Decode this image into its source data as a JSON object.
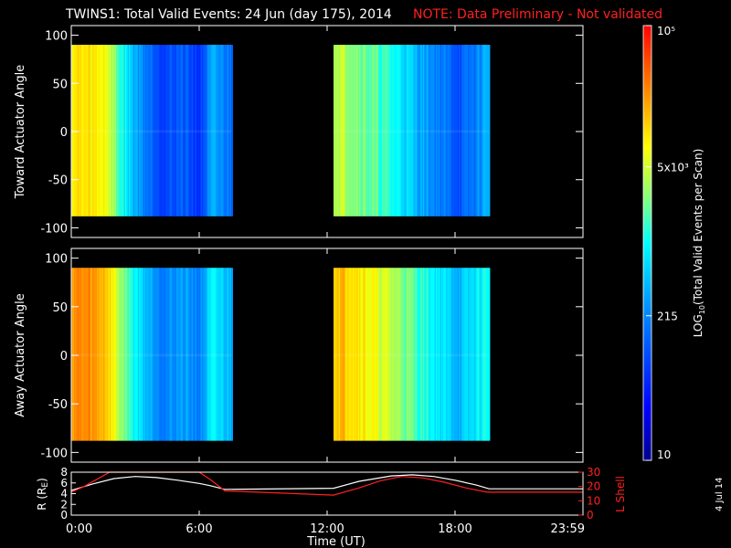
{
  "title": "TWINS1: Total Valid Events: 24 Jun (day 175), 2014",
  "note": "NOTE: Data Preliminary - Not validated",
  "date_stamp": "4 Jul 14",
  "colors": {
    "background": "#000000",
    "axes": "#ffffff",
    "note": "#ff2020",
    "r_line": "#ffffff",
    "lshell_line": "#ff2020"
  },
  "chart_data": [
    {
      "type": "heatmap",
      "panel": "top",
      "ylabel": "Toward Actuator Angle",
      "x_unit": "hours UT",
      "xlim": [
        0,
        24
      ],
      "ylim": [
        -110,
        110
      ],
      "yticks": [
        100,
        50,
        0,
        -50,
        -100
      ],
      "angle_range": [
        -88,
        90
      ],
      "data_intervals_hours": [
        [
          0.0,
          7.5
        ],
        [
          12.3,
          19.6
        ]
      ],
      "profile_hours": [
        0.0,
        0.8,
        1.6,
        2.2,
        2.8,
        3.6,
        4.4,
        5.2,
        6.0,
        6.6,
        7.5,
        12.3,
        13.2,
        14.2,
        15.2,
        16.2,
        17.2,
        18.2,
        19.0,
        19.6
      ],
      "profile_log10_counts": [
        4.0,
        3.95,
        3.9,
        3.2,
        2.7,
        2.2,
        1.9,
        2.1,
        1.8,
        2.5,
        2.2,
        3.7,
        3.5,
        3.25,
        3.0,
        2.6,
        2.3,
        2.0,
        2.3,
        2.7
      ],
      "colorbar_label": "LOG10(Total Valid Events per Scan)"
    },
    {
      "type": "heatmap",
      "panel": "middle",
      "ylabel": "Away Actuator Angle",
      "x_unit": "hours UT",
      "xlim": [
        0,
        24
      ],
      "ylim": [
        -110,
        110
      ],
      "yticks": [
        100,
        50,
        0,
        -50,
        -100
      ],
      "angle_range": [
        -88,
        90
      ],
      "data_intervals_hours": [
        [
          0.0,
          7.5
        ],
        [
          12.3,
          19.6
        ]
      ],
      "profile_hours": [
        0.0,
        0.8,
        1.6,
        2.2,
        2.8,
        3.6,
        4.4,
        5.2,
        6.0,
        6.6,
        7.5,
        12.3,
        13.2,
        14.2,
        15.2,
        16.2,
        17.2,
        18.2,
        19.0,
        19.6
      ],
      "profile_log10_counts": [
        4.4,
        4.35,
        4.2,
        3.6,
        3.1,
        2.6,
        2.3,
        2.5,
        2.3,
        2.9,
        2.6,
        4.2,
        4.1,
        3.8,
        3.55,
        3.2,
        2.9,
        2.6,
        2.9,
        3.1
      ],
      "colorbar_label": "LOG10(Total Valid Events per Scan)"
    },
    {
      "type": "line",
      "panel": "bottom",
      "xlabel": "Time (UT)",
      "xlim": [
        0,
        24
      ],
      "xtick_labels": [
        "0:00",
        "6:00",
        "12:00",
        "18:00",
        "23:59"
      ],
      "xtick_hours": [
        0,
        6,
        12,
        18,
        24
      ],
      "ylabel_left": "R (RE)",
      "ylim_left": [
        0,
        8
      ],
      "yticks_left": [
        0,
        2,
        4,
        6,
        8
      ],
      "ylabel_right": "L Shell",
      "ylim_right": [
        0,
        30
      ],
      "yticks_right": [
        0,
        10,
        20,
        30
      ],
      "series": [
        {
          "name": "R (RE)",
          "axis": "left",
          "x": [
            0,
            1,
            2,
            3,
            4,
            5,
            6,
            6.5,
            7.2,
            12.3,
            13.5,
            15,
            16,
            17,
            18,
            19,
            19.6,
            24
          ],
          "y": [
            4.6,
            5.8,
            6.8,
            7.2,
            7.0,
            6.5,
            5.9,
            5.5,
            4.8,
            5.0,
            6.3,
            7.3,
            7.5,
            7.2,
            6.5,
            5.6,
            4.9,
            4.9
          ]
        },
        {
          "name": "L Shell",
          "axis": "right",
          "x": [
            0,
            0.6,
            1.2,
            1.8,
            6.0,
            6.5,
            7.2,
            12.3,
            13.5,
            14.5,
            15.5,
            16.5,
            17.5,
            18.5,
            19.5,
            24
          ],
          "y": [
            16,
            20,
            25,
            32,
            32,
            25,
            17,
            14,
            19,
            24,
            27,
            26,
            23,
            19,
            16,
            16
          ]
        }
      ]
    }
  ],
  "colorbar": {
    "label": "LOG10(Total Valid Events per Scan)",
    "range_log10": [
      1,
      5
    ],
    "ticks": [
      {
        "text": "10",
        "log10": 1
      },
      {
        "text": "215",
        "log10": 2.33
      },
      {
        "text": "5x10³",
        "log10": 3.7
      },
      {
        "text": "10⁵",
        "log10": 5
      }
    ]
  }
}
